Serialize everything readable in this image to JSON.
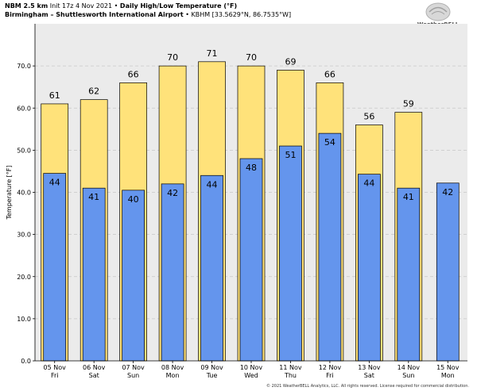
{
  "header": {
    "model": "NBM 2.5 km",
    "init": "Init 17z 4 Nov 2021",
    "separator": "•",
    "product": "Daily High/Low Temperature (°F)",
    "station": "Birmingham – Shuttlesworth International Airport",
    "station_separator": "•",
    "station_code": "KBHM [33.5629°N, 86.7535°W]"
  },
  "logo": {
    "text": "WeatherBELL"
  },
  "copyright": "© 2021 WeatherBELL Analytics, LLC. All rights reserved. License required for commercial distribution.",
  "colors": {
    "high": "#ffe27a",
    "low": "#6495ed",
    "grid": "#c8c8c8",
    "plot_bg": "#ebebeb"
  },
  "chart_data": {
    "type": "bar",
    "title": "Daily High/Low Temperature (°F)",
    "ylabel": "Temperature [°F]",
    "xlabel": "",
    "ylim": [
      0,
      80
    ],
    "yticks": [
      0,
      10,
      20,
      30,
      40,
      50,
      60,
      70
    ],
    "ytick_labels": [
      "0.0",
      "10.0",
      "20.0",
      "30.0",
      "40.0",
      "50.0",
      "60.0",
      "70.0"
    ],
    "grid": true,
    "categories": [
      {
        "date": "05 Nov",
        "day": "Fri"
      },
      {
        "date": "06 Nov",
        "day": "Sat"
      },
      {
        "date": "07 Nov",
        "day": "Sun"
      },
      {
        "date": "08 Nov",
        "day": "Mon"
      },
      {
        "date": "09 Nov",
        "day": "Tue"
      },
      {
        "date": "10 Nov",
        "day": "Wed"
      },
      {
        "date": "11 Nov",
        "day": "Thu"
      },
      {
        "date": "12 Nov",
        "day": "Fri"
      },
      {
        "date": "13 Nov",
        "day": "Sat"
      },
      {
        "date": "14 Nov",
        "day": "Sun"
      },
      {
        "date": "15 Nov",
        "day": "Mon"
      }
    ],
    "series": [
      {
        "name": "High",
        "values": [
          61,
          62,
          66,
          70,
          71,
          70,
          69,
          66,
          56,
          59,
          null
        ],
        "labels": [
          "61",
          "62",
          "66",
          "70",
          "71",
          "70",
          "69",
          "66",
          "56",
          "59",
          ""
        ]
      },
      {
        "name": "Low",
        "values": [
          44.5,
          41,
          40.5,
          42,
          44,
          48,
          51,
          54,
          44.3,
          41,
          42.2
        ],
        "labels": [
          "44",
          "41",
          "40",
          "42",
          "44",
          "48",
          "51",
          "54",
          "44",
          "41",
          "42"
        ]
      }
    ]
  }
}
